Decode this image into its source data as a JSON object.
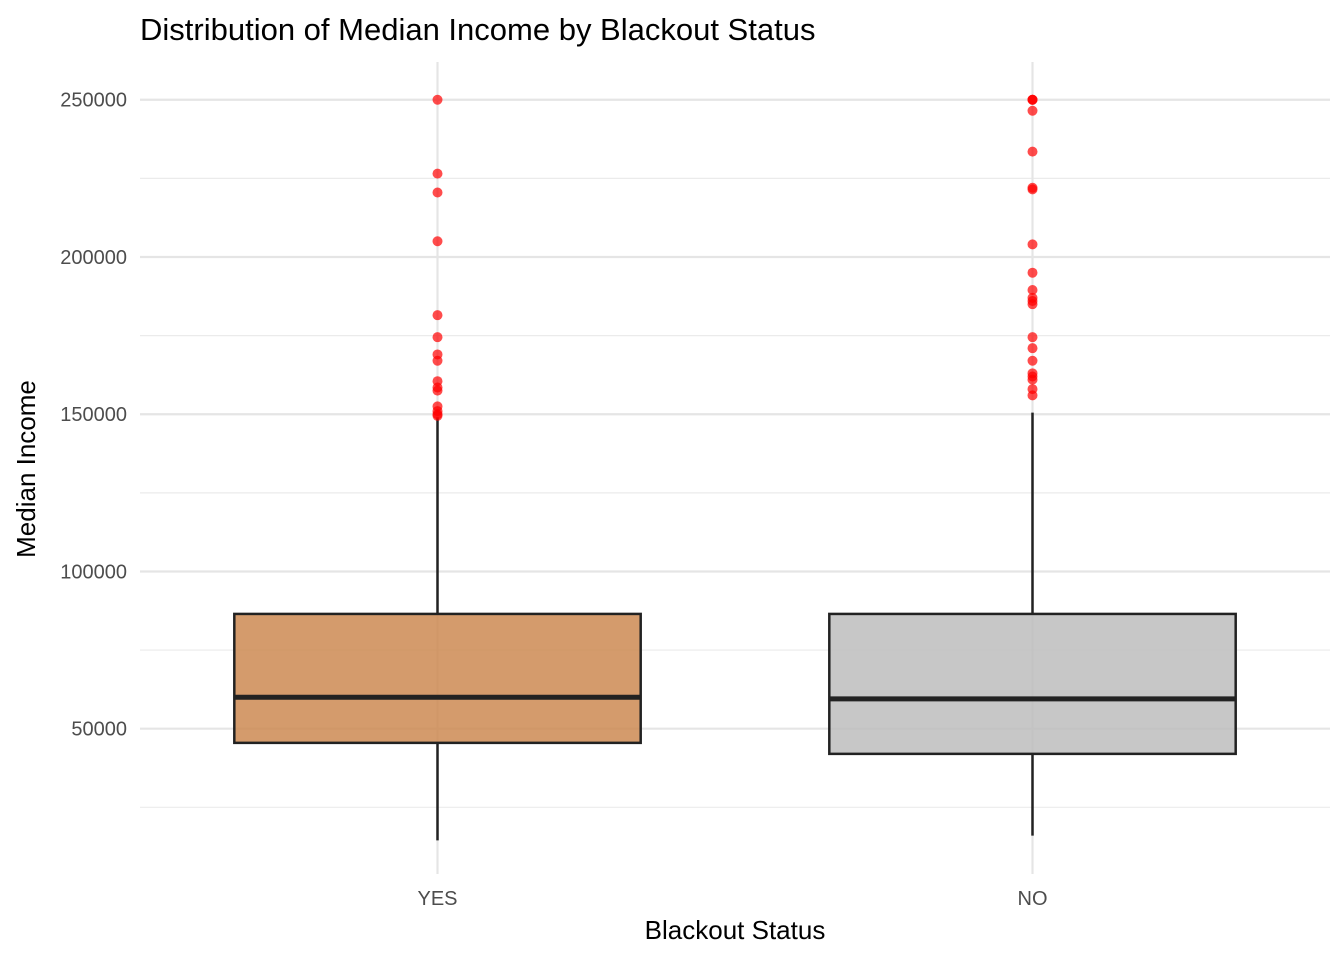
{
  "chart_data": {
    "type": "box",
    "title": "Distribution of Median Income by Blackout Status",
    "xlabel": "Blackout Status",
    "ylabel": "Median Income",
    "ylim": [
      3800,
      262000
    ],
    "yticks": [
      50000,
      100000,
      150000,
      200000,
      250000
    ],
    "ytick_labels": [
      "50000",
      "100000",
      "150000",
      "200000",
      "250000"
    ],
    "grid": true,
    "outlier_color": "#ff0000",
    "categories": [
      "YES",
      "NO"
    ],
    "boxes": [
      {
        "category": "YES",
        "fill": "#cd8a52",
        "whisker_low": 14500,
        "q1": 45500,
        "median": 60000,
        "q3": 86500,
        "whisker_high": 149000,
        "outliers": [
          250000,
          226500,
          220500,
          205000,
          181500,
          174500,
          169000,
          167000,
          160500,
          158500,
          157500,
          152500,
          151000,
          150000,
          149500
        ]
      },
      {
        "category": "NO",
        "fill": "#bdbdbd",
        "whisker_low": 16000,
        "q1": 42000,
        "median": 59500,
        "q3": 86500,
        "whisker_high": 150500,
        "outliers": [
          250000,
          250000,
          250000,
          246500,
          233500,
          222000,
          221500,
          204000,
          195000,
          189500,
          187000,
          186000,
          185000,
          174500,
          171000,
          167000,
          163000,
          162000,
          161000,
          158000,
          156000
        ]
      }
    ]
  }
}
